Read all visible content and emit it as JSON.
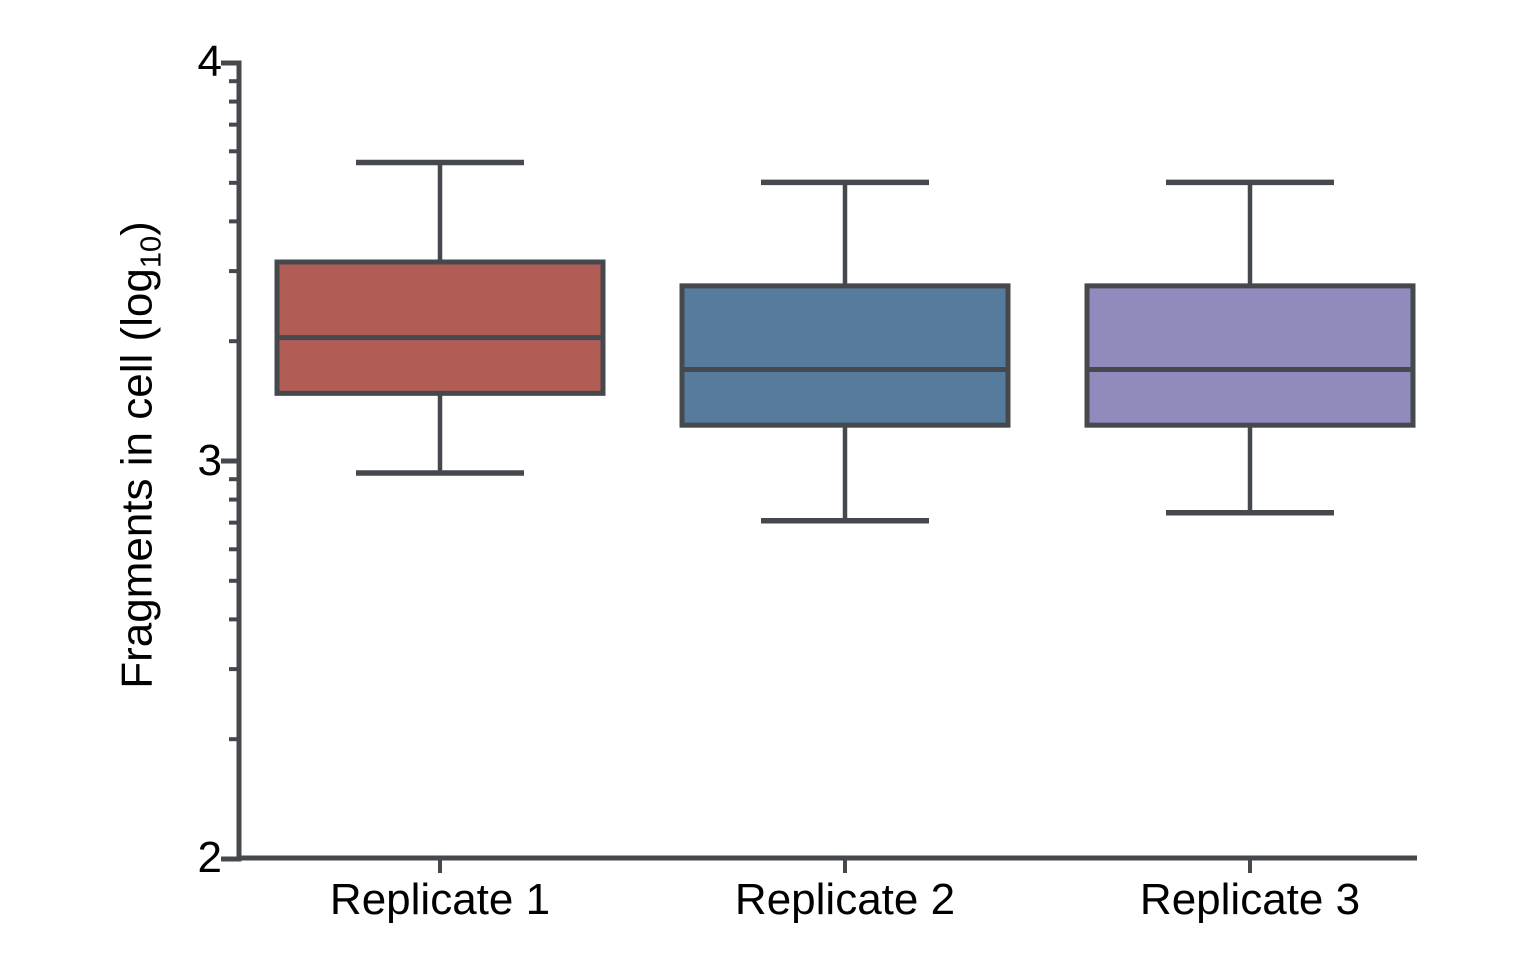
{
  "chart_data": {
    "type": "boxplot",
    "title": "",
    "ylabel_prefix": "Fragments in cell (log",
    "ylabel_sub": "10",
    "ylabel_suffix": ")",
    "categories": [
      "Replicate 1",
      "Replicate 2",
      "Replicate 3"
    ],
    "ylim": [
      2,
      4
    ],
    "yticks": [
      {
        "value": 4,
        "label": "4"
      },
      {
        "value": 3,
        "label": "3"
      },
      {
        "value": 2,
        "label": "2"
      }
    ],
    "log_minor_ticks": true,
    "grid": false,
    "legend": "none",
    "series": [
      {
        "name": "Replicate 1",
        "whisker_low": 2.97,
        "q1": 3.17,
        "median": 3.31,
        "q3": 3.5,
        "whisker_high": 3.75,
        "color": "#b15d55"
      },
      {
        "name": "Replicate 2",
        "whisker_low": 2.85,
        "q1": 3.09,
        "median": 3.23,
        "q3": 3.44,
        "whisker_high": 3.7,
        "color": "#567b9c"
      },
      {
        "name": "Replicate 3",
        "whisker_low": 2.87,
        "q1": 3.09,
        "median": 3.23,
        "q3": 3.44,
        "whisker_high": 3.7,
        "color": "#8f8bbd"
      }
    ],
    "line_color": "#45484d",
    "text_color": "#000000",
    "background": "#ffffff"
  }
}
